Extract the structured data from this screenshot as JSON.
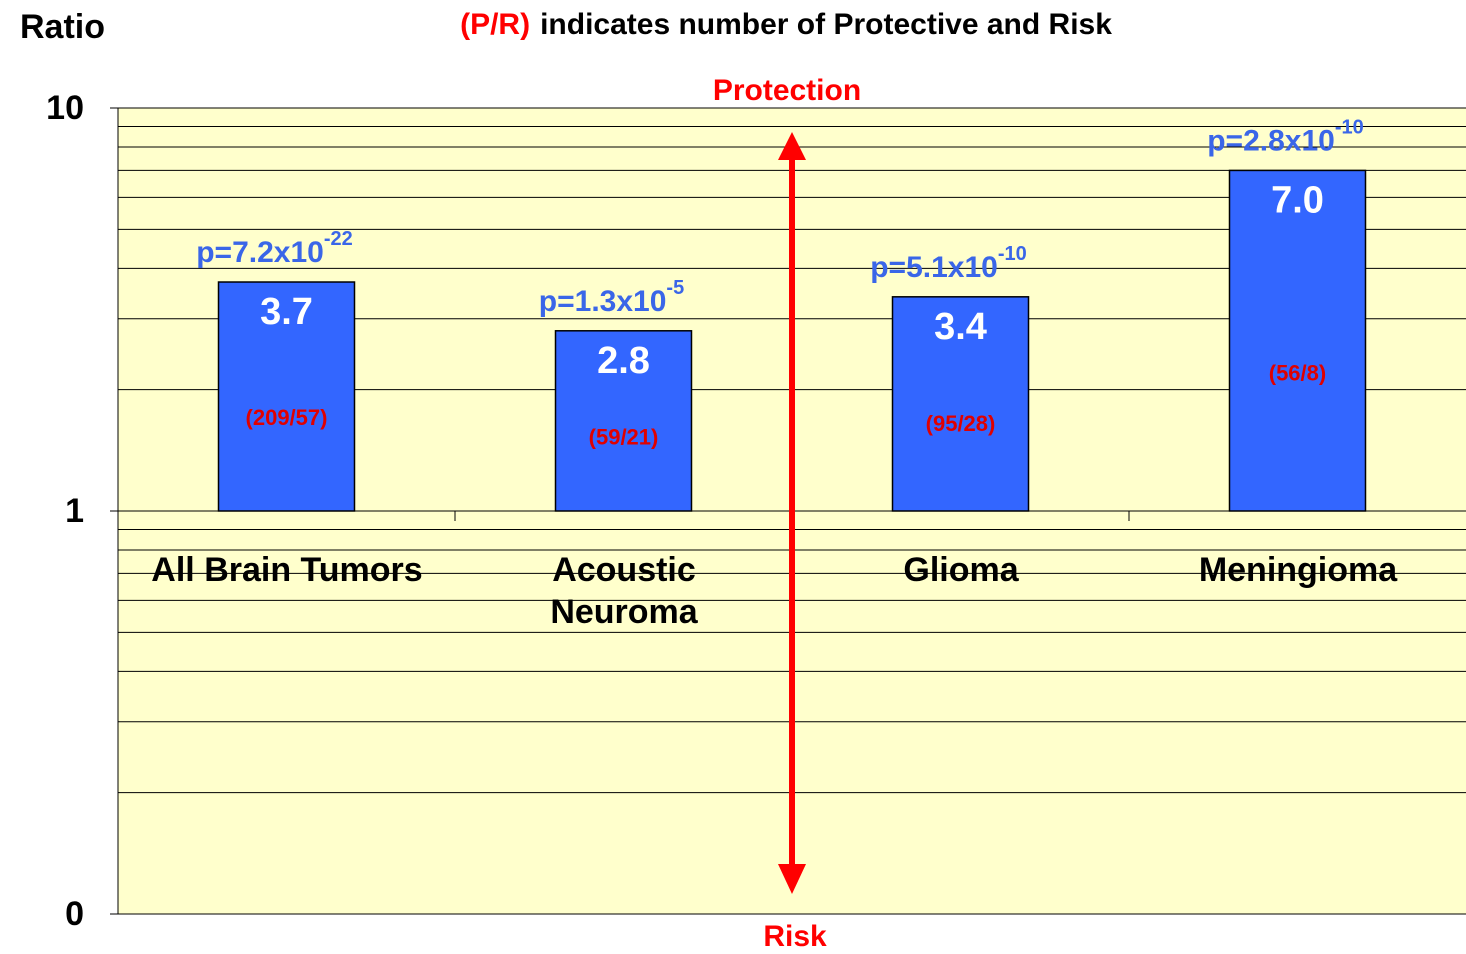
{
  "chart_data": {
    "type": "bar",
    "title_highlight": "(P/R)",
    "title": "indicates number of Protective and Risk",
    "y_label": "Ratio",
    "categories": [
      "All Brain Tumors",
      "Acoustic\nNeuroma",
      "Glioma",
      "Meningioma"
    ],
    "values": [
      3.7,
      2.8,
      3.4,
      7.0
    ],
    "value_labels": [
      "3.7",
      "2.8",
      "3.4",
      "7.0"
    ],
    "counts": [
      "(209/57)",
      "(59/21)",
      "(95/28)",
      "(56/8)"
    ],
    "p_values": [
      {
        "base": "p=7.2x10",
        "exponent": "-22"
      },
      {
        "base": "p=1.3x10",
        "exponent": "-5"
      },
      {
        "base": "p=5.1x10",
        "exponent": "-10"
      },
      {
        "base": "p=2.8x10",
        "exponent": "-10"
      }
    ],
    "arrow_labels": {
      "top": "Protection",
      "bottom": "Risk"
    },
    "log_scale": true,
    "ylim": [
      0.1,
      10
    ],
    "yticks": [
      10,
      1,
      {
        "value": 0.1,
        "label": "0"
      }
    ],
    "minor_yticks": [
      0.2,
      0.3,
      0.4,
      0.5,
      0.6,
      0.7,
      0.8,
      0.9,
      2,
      3,
      4,
      5,
      6,
      7,
      8,
      9
    ],
    "color": "#3366ff",
    "p_color": "#3a66e8",
    "count_color": "#e00000",
    "arrow_color": "#ff0000",
    "background": "#ffffcc",
    "grid": true
  }
}
